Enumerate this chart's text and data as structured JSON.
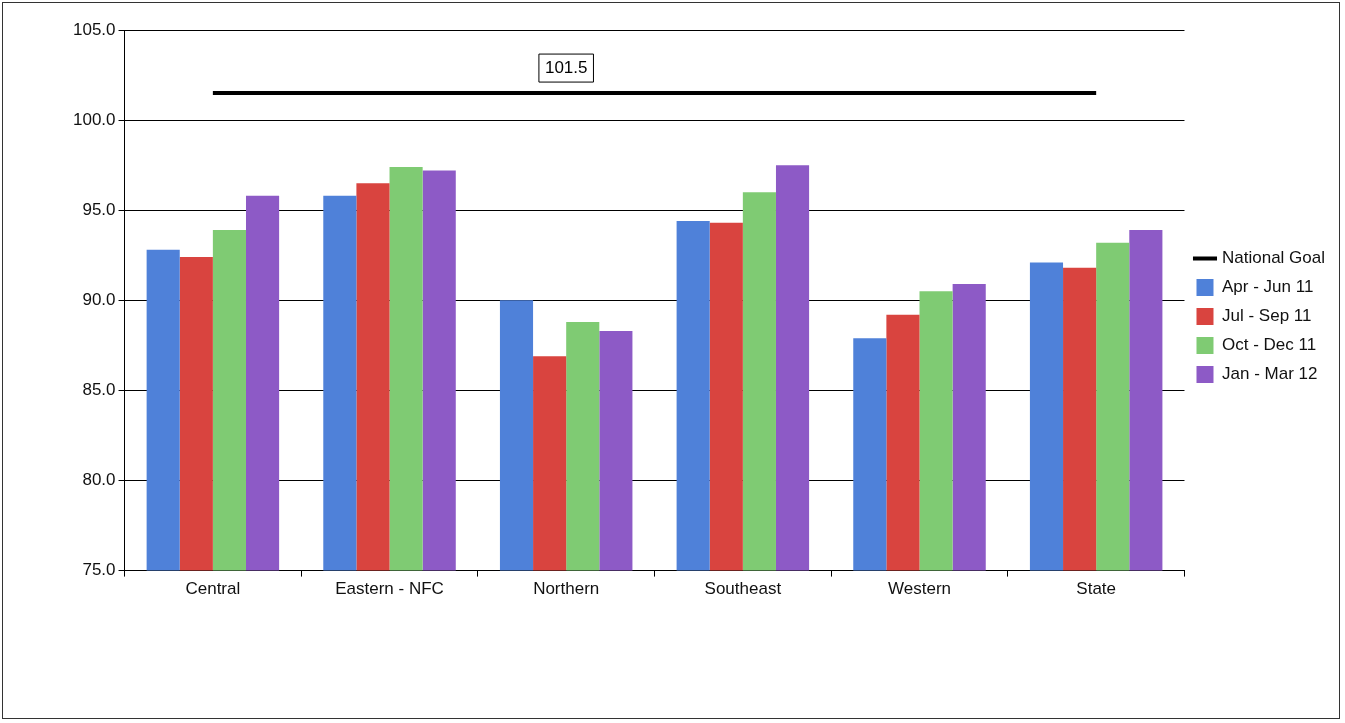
{
  "chart_data": {
    "type": "bar",
    "categories": [
      "Central",
      "Eastern - NFC",
      "Northern",
      "Southeast",
      "Western",
      "State"
    ],
    "series": [
      {
        "name": "Apr - Jun 11",
        "color": "#4f81d9",
        "values": [
          92.8,
          95.8,
          90.0,
          94.4,
          87.9,
          92.1
        ]
      },
      {
        "name": "Jul - Sep 11",
        "color": "#d9443f",
        "values": [
          92.4,
          96.5,
          86.9,
          94.3,
          89.2,
          91.8
        ]
      },
      {
        "name": "Oct - Dec 11",
        "color": "#7fcb73",
        "values": [
          93.9,
          97.4,
          88.8,
          96.0,
          90.5,
          93.2
        ]
      },
      {
        "name": "Jan - Mar 12",
        "color": "#8d5ac6",
        "values": [
          95.8,
          97.2,
          88.3,
          97.5,
          90.9,
          93.9
        ]
      },
      {
        "name": "National Goal",
        "type": "line",
        "color": "#000000",
        "values": [
          101.5,
          101.5,
          101.5,
          101.5,
          101.5,
          101.5
        ]
      }
    ],
    "ylim": [
      75,
      105
    ],
    "yticks": [
      {
        "value": 75,
        "label": "75.0"
      },
      {
        "value": 80,
        "label": "80.0"
      },
      {
        "value": 85,
        "label": "85.0"
      },
      {
        "value": 90,
        "label": "90.0"
      },
      {
        "value": 95,
        "label": "95.0"
      },
      {
        "value": 100,
        "label": "100.0"
      },
      {
        "value": 105,
        "label": "105.0"
      }
    ],
    "annotations": [
      {
        "text": "101.5",
        "x": "Northern",
        "y": 101.5
      }
    ],
    "grid": "y",
    "legend": "right",
    "marker": "none"
  }
}
